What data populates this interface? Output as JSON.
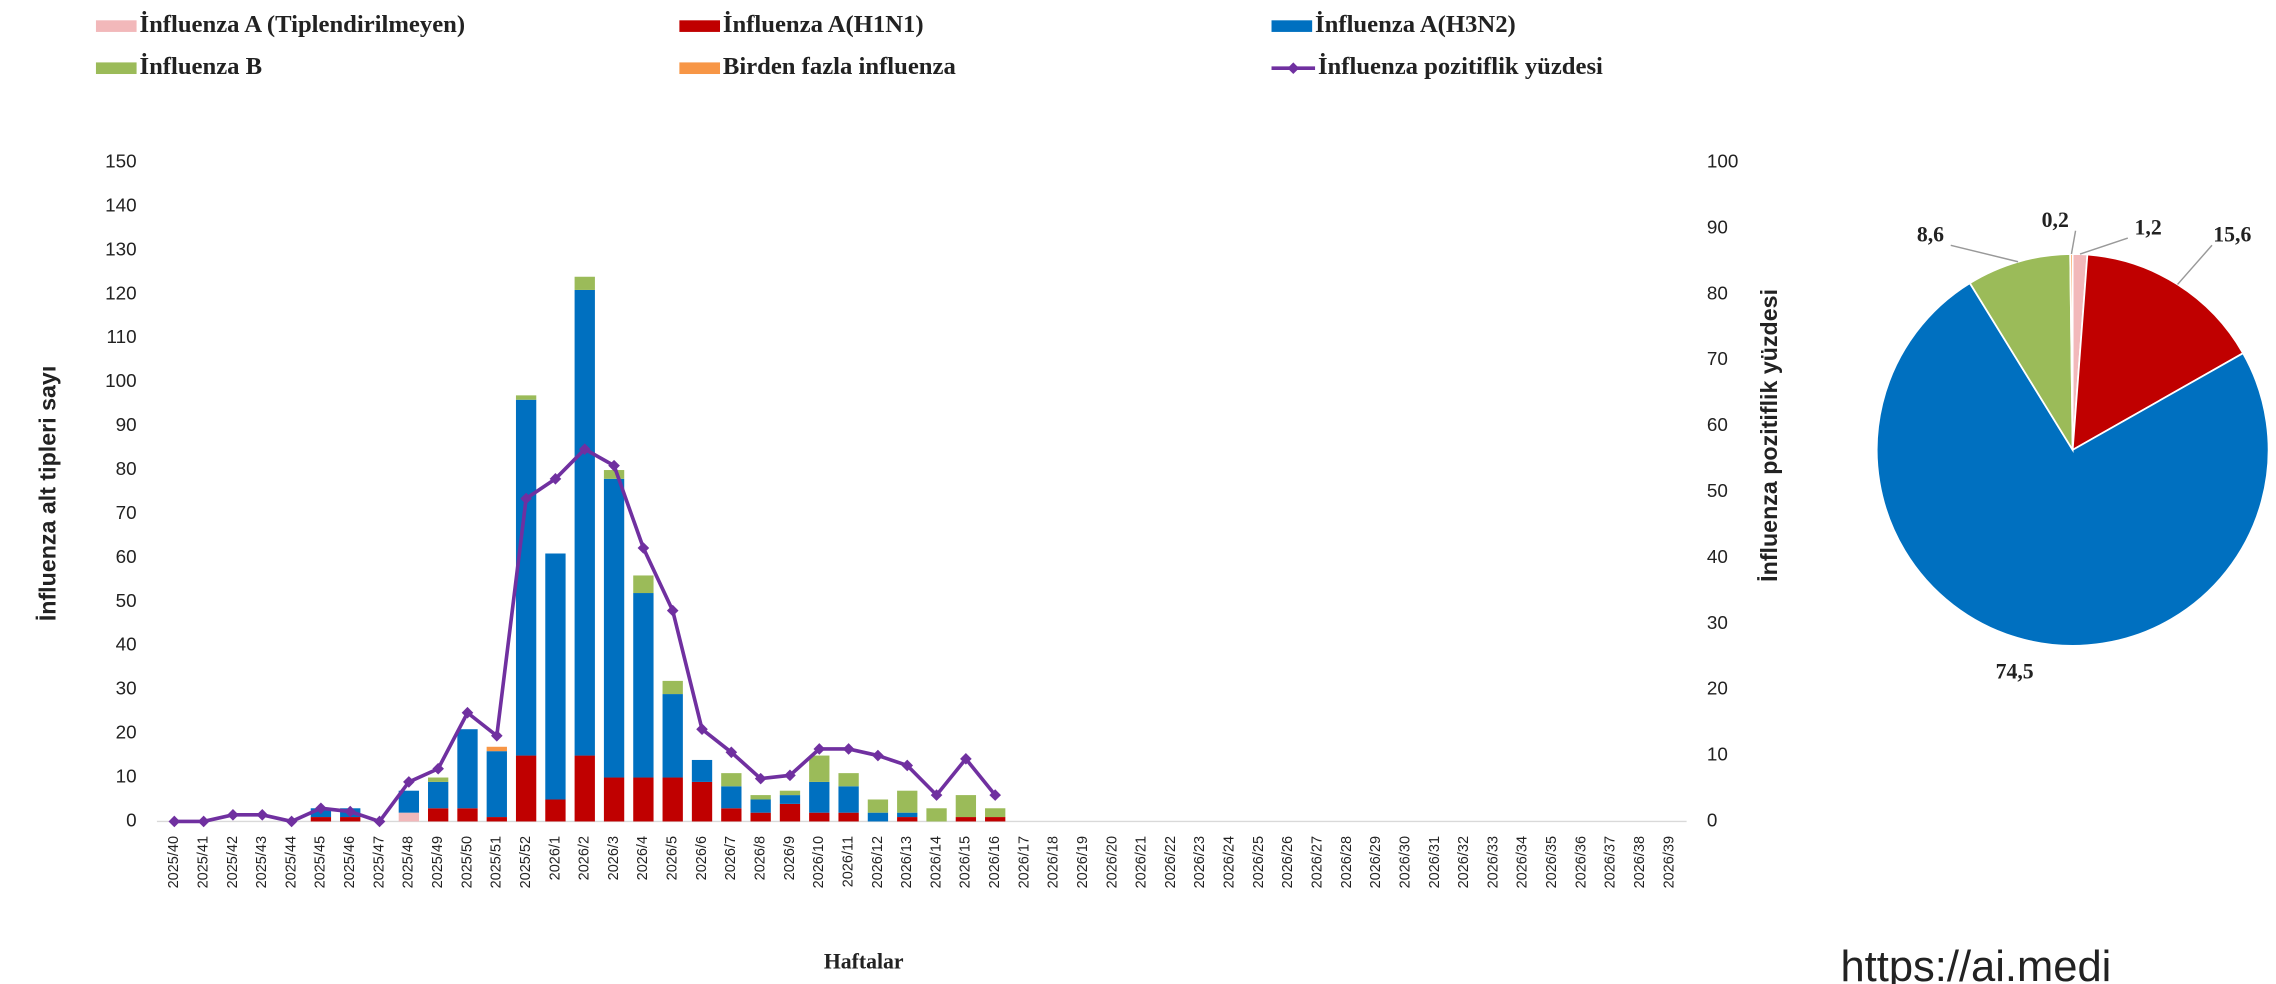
{
  "chart_data": [
    {
      "type": "bar",
      "x_label": "Haftalar",
      "y_label": "İnfluenza alt tipleri sayı",
      "y2_label": "İnfluenza pozitiflik yüzdesi",
      "stacked": true,
      "categories": [
        "2025/40",
        "2025/41",
        "2025/42",
        "2025/43",
        "2025/44",
        "2025/45",
        "2025/46",
        "2025/47",
        "2025/48",
        "2025/49",
        "2025/50",
        "2025/51",
        "2025/52",
        "2026/1",
        "2026/2",
        "2026/3",
        "2026/4",
        "2026/5",
        "2026/6",
        "2026/7",
        "2026/8",
        "2026/9",
        "2026/10",
        "2026/11",
        "2026/12",
        "2026/13",
        "2026/14",
        "2026/15",
        "2026/16",
        "2026/17",
        "2026/18",
        "2026/19",
        "2026/20",
        "2026/21",
        "2026/22",
        "2026/23",
        "2026/24",
        "2026/25",
        "2026/26",
        "2026/27",
        "2026/28",
        "2026/29",
        "2026/30",
        "2026/31",
        "2026/32",
        "2026/33",
        "2026/34",
        "2026/35",
        "2026/36",
        "2026/37",
        "2026/38",
        "2026/39"
      ],
      "series": [
        {
          "name": "İnfluenza A (Tiplendirilmeyen)",
          "color": "#f2b8ba",
          "values": [
            0,
            0,
            0,
            0,
            0,
            0,
            0,
            0,
            2,
            0,
            0,
            0,
            0,
            0,
            0,
            0,
            0,
            0,
            0,
            0,
            0,
            0,
            0,
            0,
            0,
            0,
            0,
            0,
            0,
            null,
            null,
            null,
            null,
            null,
            null,
            null,
            null,
            null,
            null,
            null,
            null,
            null,
            null,
            null,
            null,
            null,
            null,
            null,
            null,
            null,
            null,
            null
          ]
        },
        {
          "name": "İnfluenza A(H1N1)",
          "color": "#c00000",
          "values": [
            0,
            0,
            0,
            0,
            0,
            1,
            1,
            0,
            0,
            3,
            3,
            1,
            15,
            5,
            15,
            10,
            10,
            10,
            9,
            3,
            2,
            4,
            2,
            2,
            0,
            1,
            0,
            1,
            1,
            null,
            null,
            null,
            null,
            null,
            null,
            null,
            null,
            null,
            null,
            null,
            null,
            null,
            null,
            null,
            null,
            null,
            null,
            null,
            null,
            null,
            null,
            null
          ]
        },
        {
          "name": "İnfluenza A(H3N2)",
          "color": "#0070c0",
          "values": [
            0,
            0,
            0,
            0,
            0,
            2,
            2,
            0,
            5,
            6,
            18,
            15,
            81,
            56,
            106,
            68,
            42,
            19,
            5,
            5,
            3,
            2,
            7,
            6,
            2,
            1,
            0,
            0,
            0,
            null,
            null,
            null,
            null,
            null,
            null,
            null,
            null,
            null,
            null,
            null,
            null,
            null,
            null,
            null,
            null,
            null,
            null,
            null,
            null,
            null,
            null,
            null
          ]
        },
        {
          "name": "İnfluenza B",
          "color": "#9bbb59",
          "values": [
            0,
            0,
            0,
            0,
            0,
            0,
            0,
            0,
            0,
            1,
            0,
            0,
            1,
            0,
            3,
            2,
            4,
            3,
            0,
            3,
            1,
            1,
            6,
            3,
            3,
            5,
            3,
            5,
            2,
            null,
            null,
            null,
            null,
            null,
            null,
            null,
            null,
            null,
            null,
            null,
            null,
            null,
            null,
            null,
            null,
            null,
            null,
            null,
            null,
            null,
            null,
            null
          ]
        },
        {
          "name": "Birden fazla influenza",
          "color": "#f79646",
          "values": [
            0,
            0,
            0,
            0,
            0,
            0,
            0,
            0,
            0,
            0,
            0,
            1,
            0,
            0,
            0,
            0,
            0,
            0,
            0,
            0,
            0,
            0,
            0,
            0,
            0,
            0,
            0,
            0,
            0,
            null,
            null,
            null,
            null,
            null,
            null,
            null,
            null,
            null,
            null,
            null,
            null,
            null,
            null,
            null,
            null,
            null,
            null,
            null,
            null,
            null,
            null,
            null
          ]
        },
        {
          "name": "İnfluenza pozitiflik yüzdesi",
          "color": "#7030a0",
          "axis": "y2",
          "type": "line",
          "values": [
            0,
            0,
            1,
            1,
            0,
            2,
            1.5,
            0,
            6,
            8,
            16.5,
            13,
            49,
            52,
            56.5,
            54,
            41.5,
            32,
            14,
            10.5,
            6.5,
            7,
            11,
            11,
            10,
            8.5,
            4,
            9.5,
            4,
            null,
            null,
            null,
            null,
            null,
            null,
            null,
            null,
            null,
            null,
            null,
            null,
            null,
            null,
            null,
            null,
            null,
            null,
            null,
            null,
            null,
            null,
            null
          ]
        }
      ],
      "ylim": [
        0,
        150
      ],
      "yticks": [
        0,
        10,
        20,
        30,
        40,
        50,
        60,
        70,
        80,
        90,
        100,
        110,
        120,
        130,
        140,
        150
      ],
      "y2lim": [
        0,
        100
      ],
      "y2ticks": [
        0,
        10,
        20,
        30,
        40,
        50,
        60,
        70,
        80,
        90,
        100
      ],
      "grid": false
    },
    {
      "type": "pie",
      "values": [
        1.2,
        15.6,
        74.5,
        8.6,
        0.2
      ],
      "value_labels": [
        "1,2",
        "15,6",
        "74,5",
        "8,6",
        "0,2"
      ],
      "colors": [
        "#f2b8ba",
        "#c00000",
        "#0070c0",
        "#9bbb59",
        "#f79646"
      ]
    }
  ],
  "watermark": "https://ai.medi"
}
